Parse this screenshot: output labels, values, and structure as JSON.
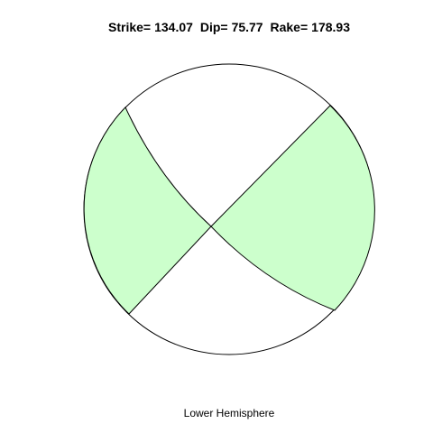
{
  "title": {
    "strike_label": "Strike=",
    "strike_value": "134.07",
    "dip_label": "Dip=",
    "dip_value": "75.77",
    "rake_label": "Rake=",
    "rake_value": "178.93"
  },
  "hemisphere_label": "Lower Hemisphere",
  "colors": {
    "compressional_fill": "#ccffcc",
    "dilatational_fill": "#ffffff",
    "outline": "#000000"
  }
}
